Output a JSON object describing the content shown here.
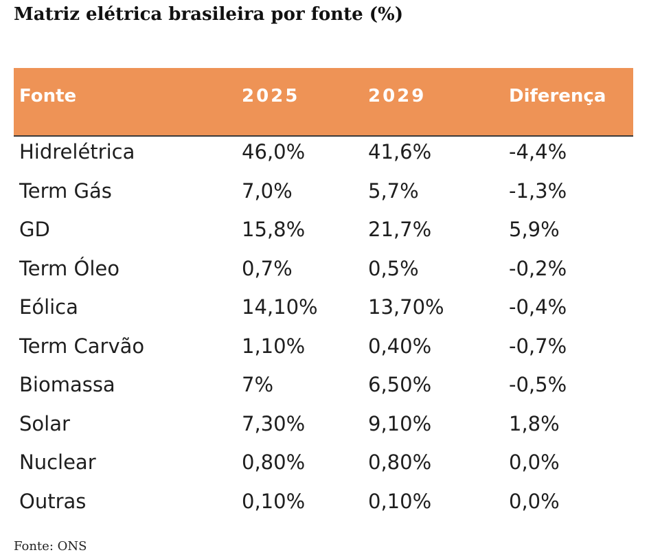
{
  "title": "Matriz elétrica brasileira por fonte (%)",
  "source_note": "Fonte: ONS",
  "colors": {
    "header_bg": "#ee9356",
    "header_text": "#ffffff",
    "body_text": "#1e1e1e"
  },
  "chart_data": {
    "type": "table",
    "title": "Matriz elétrica brasileira por fonte (%)",
    "columns": [
      "Fonte",
      "2025",
      "2029",
      "Diferença"
    ],
    "rows": [
      [
        "Hidrelétrica",
        "46,0%",
        "41,6%",
        "-4,4%"
      ],
      [
        "Term Gás",
        "7,0%",
        "5,7%",
        "-1,3%"
      ],
      [
        "GD",
        "15,8%",
        "21,7%",
        "5,9%"
      ],
      [
        "Term Óleo",
        "0,7%",
        "0,5%",
        "-0,2%"
      ],
      [
        "Eólica",
        "14,10%",
        "13,70%",
        "-0,4%"
      ],
      [
        "Term Carvão",
        "1,10%",
        "0,40%",
        "-0,7%"
      ],
      [
        "Biomassa",
        "7%",
        "6,50%",
        "-0,5%"
      ],
      [
        "Solar",
        "7,30%",
        "9,10%",
        "1,8%"
      ],
      [
        "Nuclear",
        "0,80%",
        "0,80%",
        "0,0%"
      ],
      [
        "Outras",
        "0,10%",
        "0,10%",
        "0,0%"
      ]
    ],
    "source": "Fonte: ONS"
  }
}
